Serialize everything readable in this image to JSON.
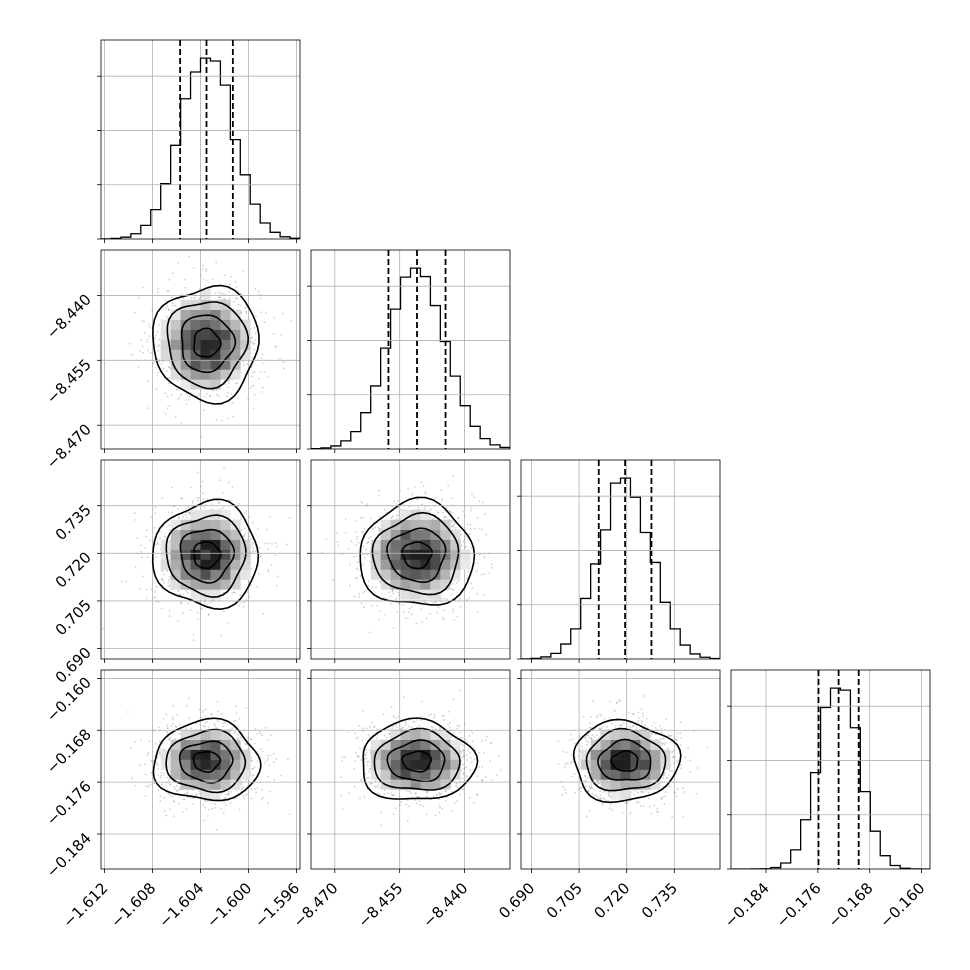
{
  "chart_data": {
    "type": "corner",
    "parameters": [
      {
        "id": "p0",
        "range": [
          -1.6123,
          -1.5957
        ],
        "mean": -1.6035,
        "sigma": 0.0022,
        "quantiles": [
          -1.6057,
          -1.6035,
          -1.6013
        ],
        "ticks": [
          -1.612,
          -1.608,
          -1.604,
          -1.6,
          -1.596
        ],
        "tick_labels": [
          "−1.612",
          "−1.608",
          "−1.604",
          "−1.600",
          "−1.596"
        ]
      },
      {
        "id": "p1",
        "range": [
          -8.4755,
          -8.4295
        ],
        "mean": -8.451,
        "sigma": 0.0066,
        "quantiles": [
          -8.4576,
          -8.451,
          -8.4444
        ],
        "ticks": [
          -8.47,
          -8.455,
          -8.44
        ],
        "tick_labels": [
          "−8.470",
          "−8.455",
          "−8.440"
        ]
      },
      {
        "id": "p2",
        "range": [
          0.6867,
          0.7494
        ],
        "mean": 0.7195,
        "sigma": 0.0083,
        "quantiles": [
          0.7112,
          0.7195,
          0.7278
        ],
        "ticks": [
          0.69,
          0.705,
          0.72,
          0.735
        ],
        "tick_labels": [
          "0.690",
          "0.705",
          "0.720",
          "0.735"
        ]
      },
      {
        "id": "p3",
        "range": [
          -0.1894,
          -0.1587
        ],
        "mean": -0.1728,
        "sigma": 0.0031,
        "quantiles": [
          -0.1759,
          -0.1728,
          -0.1697
        ],
        "ticks": [
          -0.184,
          -0.176,
          -0.168,
          -0.16
        ],
        "tick_labels": [
          "−0.184",
          "−0.176",
          "−0.168",
          "−0.160"
        ]
      }
    ],
    "histogram": {
      "bins": 20
    },
    "quantile_levels": [
      0.16,
      0.5,
      0.84
    ],
    "contour_levels_sigma": [
      0.5,
      1.0,
      1.5,
      2.0
    ],
    "samples_shown_as_points": true,
    "grid": true,
    "colors": {
      "ink": "#000000",
      "grid": "#b0b0b0",
      "points": "#7f7f7f"
    }
  }
}
